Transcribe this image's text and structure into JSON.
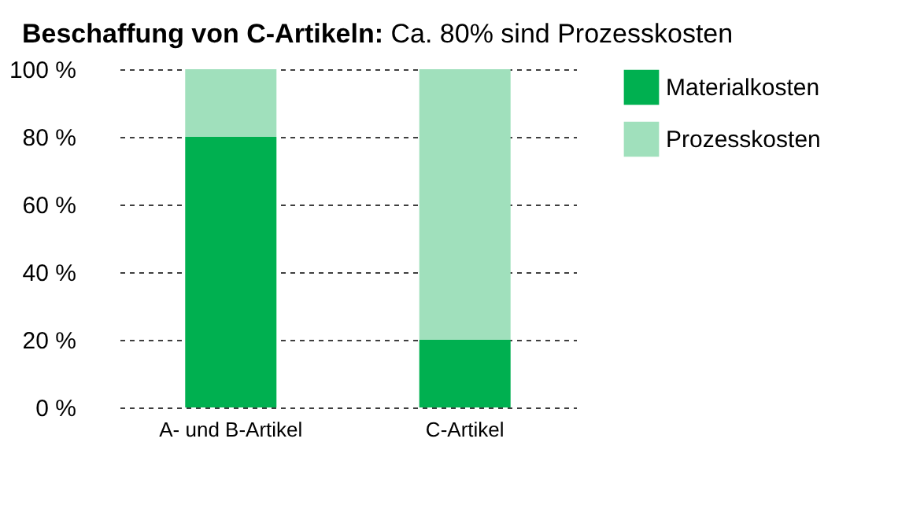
{
  "chart_data": {
    "type": "bar",
    "title": "Beschaffung von C-Artikeln: Ca. 80% sind Prozesskosten",
    "categories": [
      "A- und B-Artikel",
      "C-Artikel"
    ],
    "series": [
      {
        "name": "Materialkosten",
        "color": "#00b050",
        "values": [
          80,
          20
        ]
      },
      {
        "name": "Prozesskosten",
        "color": "#a0e0bc",
        "values": [
          20,
          80
        ]
      }
    ],
    "stacked": true,
    "ylim": [
      0,
      100
    ],
    "yticks": [
      {
        "value": 0,
        "label": "0 %"
      },
      {
        "value": 20,
        "label": "20 %"
      },
      {
        "value": 40,
        "label": "40  %"
      },
      {
        "value": 60,
        "label": "60 %"
      },
      {
        "value": 80,
        "label": "80  %"
      },
      {
        "value": 100,
        "label": "100 %"
      }
    ],
    "grid": "y",
    "legend": "right"
  }
}
